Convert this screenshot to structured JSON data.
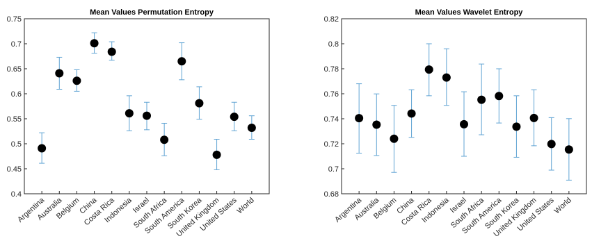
{
  "chart_data": [
    {
      "type": "scatter",
      "title": "Mean Values Permutation Entropy",
      "xlabel": "",
      "ylabel": "",
      "categories": [
        "Argentina",
        "Australia",
        "Belgium",
        "China",
        "Costa Rica",
        "Indonesia",
        "Israel",
        "South Africa",
        "South America",
        "South Korea",
        "United Kingdom",
        "United States",
        "World"
      ],
      "values": [
        0.491,
        0.641,
        0.626,
        0.701,
        0.684,
        0.561,
        0.556,
        0.508,
        0.665,
        0.581,
        0.478,
        0.554,
        0.532
      ],
      "lower": [
        0.461,
        0.609,
        0.605,
        0.681,
        0.667,
        0.526,
        0.528,
        0.476,
        0.628,
        0.549,
        0.448,
        0.526,
        0.509
      ],
      "upper": [
        0.522,
        0.673,
        0.648,
        0.722,
        0.704,
        0.596,
        0.583,
        0.541,
        0.702,
        0.614,
        0.509,
        0.583,
        0.556
      ],
      "ylim": [
        0.4,
        0.75
      ],
      "yticks": [
        "0.4",
        "0.45",
        "0.5",
        "0.55",
        "0.6",
        "0.65",
        "0.7",
        "0.75"
      ],
      "grid": false,
      "marker_color": "#000000",
      "errorbar_color": "#5fa3d3"
    },
    {
      "type": "scatter",
      "title": "Mean Values Wavelet Entropy",
      "xlabel": "",
      "ylabel": "",
      "categories": [
        "Argentina",
        "Australia",
        "Belgium",
        "China",
        "Costa Rica",
        "Indonesia",
        "Israel",
        "South Africa",
        "South America",
        "South Korea",
        "United Kingdom",
        "United States",
        "World"
      ],
      "values": [
        0.7405,
        0.7353,
        0.724,
        0.7442,
        0.7794,
        0.773,
        0.7356,
        0.7552,
        0.7582,
        0.7337,
        0.7406,
        0.7198,
        0.7154
      ],
      "lower": [
        0.7125,
        0.7106,
        0.6971,
        0.7251,
        0.7584,
        0.7507,
        0.71,
        0.7272,
        0.7366,
        0.7092,
        0.7184,
        0.6989,
        0.6909
      ],
      "upper": [
        0.768,
        0.7599,
        0.7507,
        0.7632,
        0.8,
        0.796,
        0.7616,
        0.7838,
        0.78,
        0.7584,
        0.7632,
        0.7409,
        0.7401
      ],
      "ylim": [
        0.68,
        0.82
      ],
      "yticks": [
        "0.68",
        "0.7",
        "0.72",
        "0.74",
        "0.76",
        "0.78",
        "0.8",
        "0.82"
      ],
      "grid": false,
      "marker_color": "#000000",
      "errorbar_color": "#5fa3d3"
    }
  ]
}
